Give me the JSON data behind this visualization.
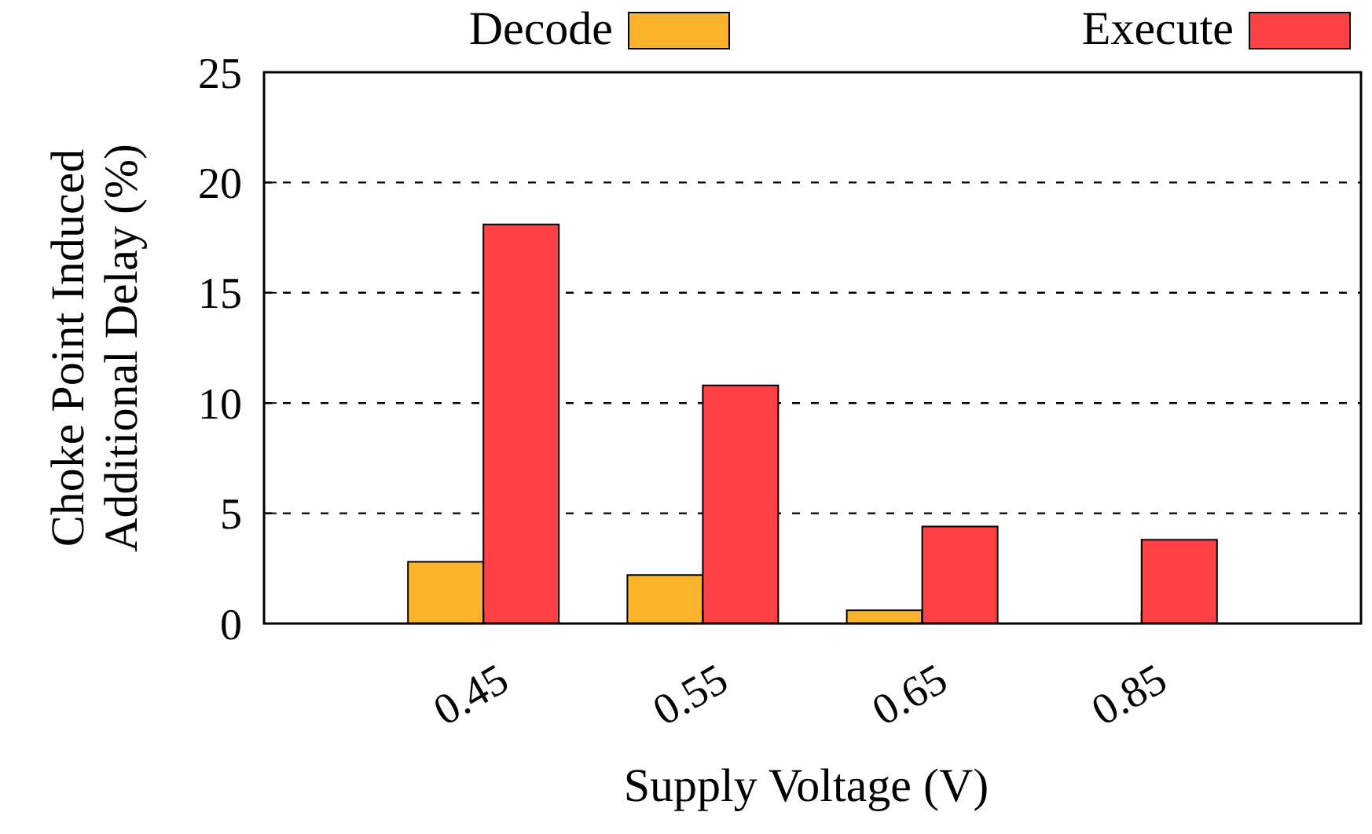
{
  "chart_data": {
    "type": "bar",
    "xlabel": "Supply Voltage (V)",
    "ylabel": "Choke Point Induced\nAdditional Delay (%)",
    "categories": [
      "0.45",
      "0.55",
      "0.65",
      "0.85"
    ],
    "series": [
      {
        "name": "Decode",
        "color": "#fbb32b",
        "values": [
          2.8,
          2.2,
          0.6,
          0
        ]
      },
      {
        "name": "Execute",
        "color": "#ff4045",
        "values": [
          18.1,
          10.8,
          4.4,
          3.8
        ]
      }
    ],
    "ylim": [
      0,
      25
    ],
    "yticks": [
      0,
      5,
      10,
      15,
      20,
      25
    ],
    "grid": "y",
    "legend": "top"
  }
}
